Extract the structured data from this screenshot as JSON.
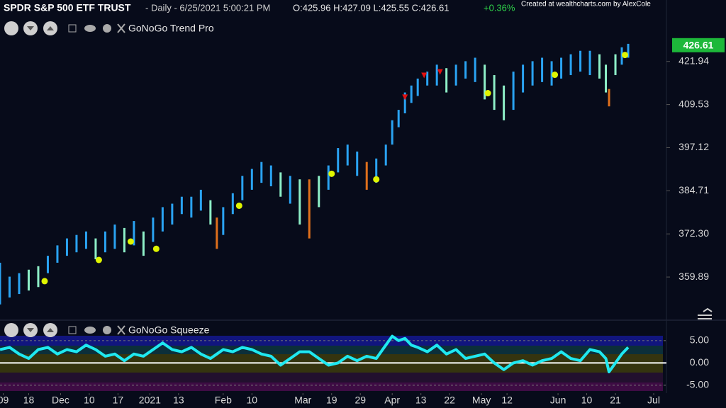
{
  "header": {
    "symbol": "SPDR S&P 500 ETF TRUST",
    "info": "- Daily - 6/25/2021 5:00:21 PM",
    "ohlc": "O:425.96 H:427.09 L:425.55 C:426.61",
    "change": "+0.36%",
    "credit": "Created at wealthcharts.com by AlexCole"
  },
  "chart_data": [
    {
      "type": "ohlc",
      "title": "GoNoGo Trend Pro",
      "xlim": [
        0,
        209
      ],
      "ylim": [
        348.9,
        433.5
      ],
      "yticks": [
        359.89,
        {
          "value": 372.3,
          "label": "372.30"
        },
        384.71,
        397.12,
        409.53,
        421.94
      ],
      "last_value": 426.61,
      "last_color": "#1db83a",
      "bar_groups": [
        {
          "color": "#2aa3f2",
          "x": [
            0,
            3,
            6,
            15,
            18,
            21,
            24,
            27,
            33,
            36,
            42,
            48,
            51,
            54,
            57,
            60,
            63,
            70,
            73,
            76,
            79,
            82,
            85,
            91,
            103,
            106,
            109,
            112,
            118,
            121,
            123,
            125,
            127,
            129,
            131,
            134,
            137,
            143,
            146,
            149,
            161,
            164,
            167,
            170,
            173,
            176,
            179,
            182,
            185,
            195,
            197
          ],
          "low": [
            352,
            354,
            355,
            361,
            364,
            366,
            367,
            368,
            367,
            368,
            369,
            370,
            373,
            375,
            378,
            377,
            379,
            372,
            378,
            382,
            385,
            387,
            386,
            381,
            385,
            390,
            392,
            389,
            387,
            392,
            398,
            403,
            407,
            410,
            412,
            415,
            415,
            415,
            417,
            416,
            408,
            413,
            415,
            416,
            415,
            417,
            418,
            419,
            418,
            421,
            423
          ],
          "high": [
            364,
            360,
            361,
            366,
            369,
            371,
            372,
            373,
            373,
            375,
            376,
            377,
            380,
            381,
            383,
            383,
            385,
            380,
            384,
            389,
            391,
            393,
            392,
            389,
            392,
            397,
            398,
            396,
            394,
            398,
            405,
            408,
            413,
            415,
            417,
            419,
            421,
            421,
            422,
            423,
            419,
            421,
            422,
            423,
            422,
            423,
            424,
            425,
            425,
            426,
            427
          ]
        },
        {
          "color": "#8ef0c8",
          "x": [
            9,
            12,
            30,
            39,
            45,
            66,
            88,
            94,
            100,
            140,
            152,
            155,
            158,
            188,
            190,
            193
          ],
          "low": [
            356,
            357,
            365,
            367,
            366,
            375,
            383,
            375,
            380,
            413,
            411,
            408,
            405,
            417,
            413,
            418
          ],
          "high": [
            362,
            363,
            371,
            374,
            373,
            382,
            390,
            388,
            389,
            420,
            421,
            418,
            415,
            424,
            421,
            424
          ]
        },
        {
          "color": "#e0701c",
          "x": [
            68,
            97,
            115,
            191
          ],
          "low": [
            368,
            371,
            385,
            409
          ],
          "high": [
            377,
            388,
            393,
            414
          ]
        }
      ],
      "go_dots": {
        "color": "#dff500",
        "x": [
          14,
          31,
          41,
          49,
          75,
          104,
          118,
          153,
          174,
          196
        ],
        "y": [
          358.7,
          364.8,
          370.1,
          368,
          380.4,
          389.6,
          388,
          412.8,
          418.1,
          423.8
        ]
      },
      "triangles": {
        "color": "#e01010",
        "x": [
          127,
          133,
          138
        ],
        "y": [
          411.6,
          417.9,
          418.9
        ]
      }
    },
    {
      "type": "line",
      "title": "GoNoGo Squeeze",
      "xlim": [
        0,
        209
      ],
      "xticks": [
        {
          "value": 1,
          "label": "09"
        },
        {
          "value": 9,
          "label": "18"
        },
        {
          "value": 19,
          "label": "Dec"
        },
        {
          "value": 28,
          "label": "10"
        },
        {
          "value": 37,
          "label": "17"
        },
        {
          "value": 47,
          "label": "2021"
        },
        {
          "value": 56,
          "label": "13"
        },
        {
          "value": 70,
          "label": "Feb"
        },
        {
          "value": 79,
          "label": "10"
        },
        {
          "value": 95,
          "label": "Mar"
        },
        {
          "value": 104,
          "label": "19"
        },
        {
          "value": 113,
          "label": "29"
        },
        {
          "value": 123,
          "label": "Apr"
        },
        {
          "value": 132,
          "label": "13"
        },
        {
          "value": 141,
          "label": "22"
        },
        {
          "value": 151,
          "label": "May"
        },
        {
          "value": 159,
          "label": "12"
        },
        {
          "value": 175,
          "label": "Jun"
        },
        {
          "value": 184,
          "label": "10"
        },
        {
          "value": 193,
          "label": "21"
        },
        {
          "value": 205,
          "label": "Jul"
        }
      ],
      "ylim": [
        -6.3,
        6.1
      ],
      "yticks": [
        {
          "value": 5,
          "label": "5.00"
        },
        {
          "value": 0,
          "label": "0.00"
        },
        {
          "value": -5,
          "label": "-5.00"
        }
      ],
      "series": [
        {
          "color": "#1fe8f0",
          "x": [
            0,
            3,
            6,
            9,
            12,
            15,
            18,
            21,
            24,
            27,
            30,
            33,
            36,
            39,
            42,
            45,
            48,
            51,
            54,
            57,
            60,
            63,
            66,
            68,
            70,
            73,
            76,
            79,
            82,
            85,
            88,
            91,
            94,
            97,
            100,
            103,
            106,
            109,
            112,
            115,
            118,
            121,
            123,
            125,
            127,
            129,
            131,
            134,
            137,
            140,
            143,
            146,
            149,
            152,
            155,
            158,
            161,
            164,
            167,
            170,
            173,
            176,
            179,
            182,
            185,
            188,
            190,
            191,
            193,
            195,
            197
          ],
          "values": [
            3,
            3.5,
            2,
            1,
            3,
            3.5,
            2,
            3,
            2.5,
            4,
            3,
            1.5,
            2,
            0.5,
            2,
            1.5,
            3,
            4.5,
            3,
            2.5,
            3.5,
            2,
            1,
            2,
            3,
            2.5,
            3.5,
            3,
            2,
            1.5,
            -0.5,
            1,
            2.5,
            2.5,
            1,
            -0.5,
            0,
            1.5,
            0.5,
            1.5,
            1,
            4,
            6,
            5,
            5.5,
            4,
            3.5,
            2.5,
            4,
            2,
            3,
            1,
            1.5,
            2,
            0,
            -1.5,
            0,
            0.5,
            -0.5,
            0.5,
            1,
            2.5,
            1,
            0.5,
            3,
            2.5,
            1,
            -2,
            0,
            2,
            3.5
          ]
        }
      ]
    }
  ]
}
